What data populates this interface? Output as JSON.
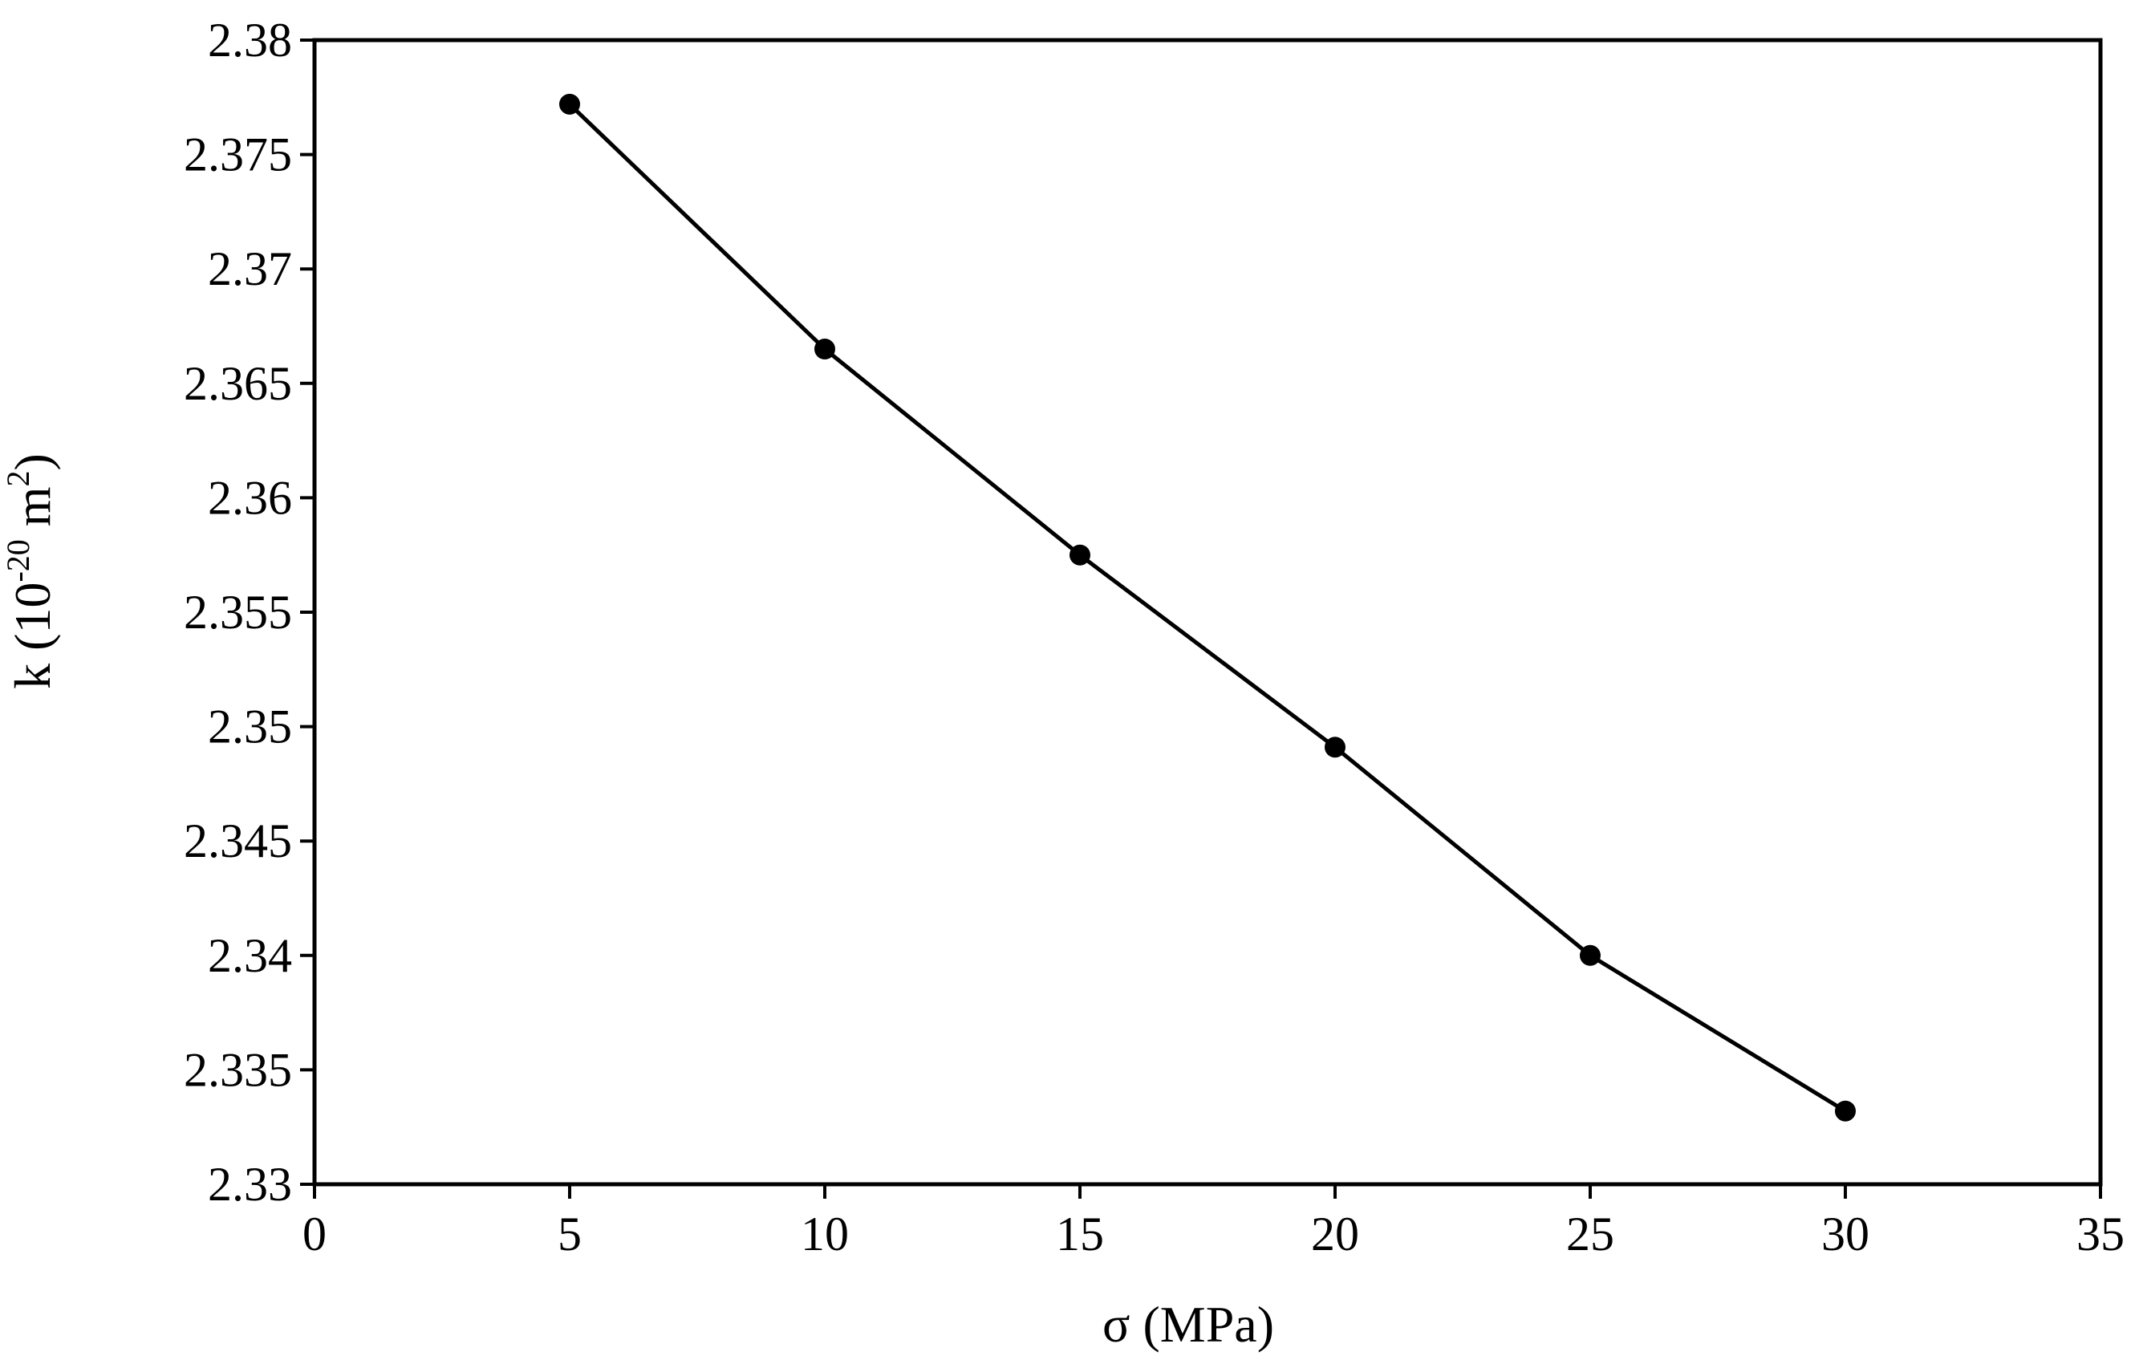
{
  "chart_data": {
    "type": "line",
    "title": "",
    "xlabel": "σ (MPa)",
    "ylabel": {
      "prefix": "k (10",
      "exp1": "-20",
      "mid": " m",
      "exp2": "2",
      "suffix": ")"
    },
    "xlim": [
      0,
      35
    ],
    "ylim": [
      2.33,
      2.38
    ],
    "x_ticks": [
      "0",
      "5",
      "10",
      "15",
      "20",
      "25",
      "30",
      "35"
    ],
    "y_ticks": [
      "2.33",
      "2.335",
      "2.34",
      "2.345",
      "2.35",
      "2.355",
      "2.36",
      "2.365",
      "2.37",
      "2.375",
      "2.38"
    ],
    "grid": false,
    "legend": false,
    "series": [
      {
        "marker": "filled-circle",
        "color": "#000000",
        "x": [
          5,
          10,
          15,
          20,
          25,
          30
        ],
        "y": [
          2.3772,
          2.3665,
          2.3575,
          2.3491,
          2.34,
          2.3332
        ]
      }
    ]
  }
}
